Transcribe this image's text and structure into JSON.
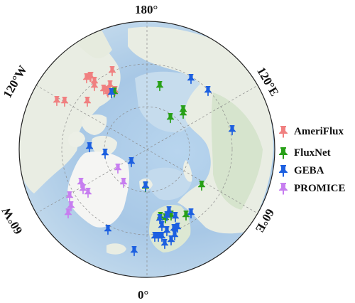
{
  "map": {
    "projection": "north-polar-stereographic",
    "ocean_colors": [
      "#a9c9e6",
      "#c9dcec"
    ],
    "land_color": "#e9ede3",
    "greenland_color": "#f4f4f2",
    "vegetation_color": "#d6e4cd",
    "graticule_color": "#8a8a8a"
  },
  "longitude_labels": {
    "top": "180°",
    "bottom": "0°",
    "left_upper": "120°W",
    "left_lower": "60°W",
    "right_upper": "120°E",
    "right_lower": "60°E"
  },
  "legend": [
    {
      "label": "AmeriFlux",
      "color": "#f08080",
      "icon": "pin-icon"
    },
    {
      "label": "FluxNet",
      "color": "#28a017",
      "icon": "pin-icon"
    },
    {
      "label": "GEBA",
      "color": "#1c5fe0",
      "icon": "pin-icon"
    },
    {
      "label": "PROMICE",
      "color": "#c77ef0",
      "icon": "pin-icon"
    }
  ],
  "sites": {
    "AmeriFlux": [
      [
        80,
        142
      ],
      [
        91,
        143
      ],
      [
        122,
        110
      ],
      [
        127,
        108
      ],
      [
        133,
        115
      ],
      [
        133,
        121
      ],
      [
        128,
        108
      ],
      [
        146,
        126
      ],
      [
        152,
        130
      ],
      [
        151,
        128
      ],
      [
        162,
        128
      ],
      [
        158,
        100
      ],
      [
        123,
        143
      ],
      [
        155,
        120
      ]
    ],
    "FluxNet": [
      [
        161,
        130
      ],
      [
        205,
        263
      ],
      [
        225,
        121
      ],
      [
        240,
        166
      ],
      [
        258,
        155
      ],
      [
        258,
        160
      ],
      [
        284,
        261
      ],
      [
        226,
        305
      ],
      [
        233,
        307
      ],
      [
        241,
        303
      ],
      [
        262,
        303
      ]
    ],
    "GEBA": [
      [
        157,
        131
      ],
      [
        269,
        111
      ],
      [
        293,
        128
      ],
      [
        327,
        183
      ],
      [
        126,
        207
      ],
      [
        148,
        216
      ],
      [
        185,
        228
      ],
      [
        205,
        262
      ],
      [
        225,
        308
      ],
      [
        228,
        318
      ],
      [
        235,
        304
      ],
      [
        235,
        325
      ],
      [
        238,
        297
      ],
      [
        245,
        322
      ],
      [
        246,
        331
      ],
      [
        247,
        305
      ],
      [
        250,
        320
      ],
      [
        218,
        333
      ],
      [
        223,
        333
      ],
      [
        228,
        333
      ],
      [
        232,
        343
      ],
      [
        241,
        338
      ],
      [
        269,
        300
      ],
      [
        152,
        323
      ],
      [
        189,
        353
      ]
    ],
    "PROMICE": [
      [
        166,
        237
      ],
      [
        174,
        257
      ],
      [
        114,
        257
      ],
      [
        117,
        266
      ],
      [
        124,
        271
      ],
      [
        98,
        276
      ],
      [
        100,
        290
      ],
      [
        96,
        300
      ]
    ]
  }
}
